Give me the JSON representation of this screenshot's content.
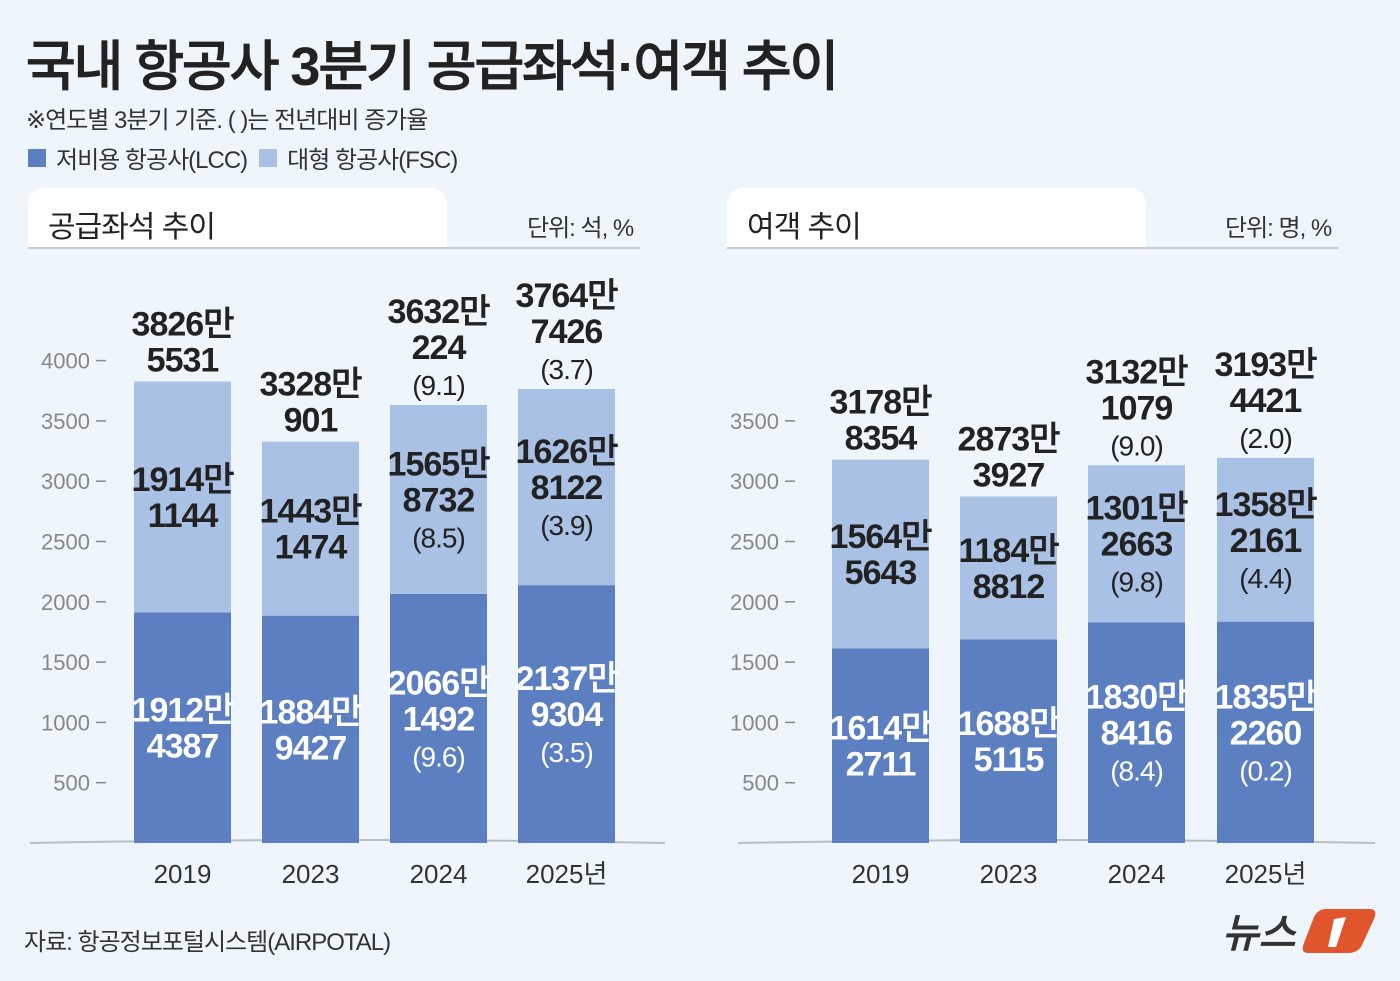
{
  "title": "국내 항공사 3분기 공급좌석·여객 추이",
  "subtitle": "※연도별 3분기 기준. ( )는 전년대비 증가율",
  "legend": [
    {
      "label": "저비용 항공사(LCC)",
      "color": "#5b7fc0"
    },
    {
      "label": "대형 항공사(FSC)",
      "color": "#a9c1e4"
    }
  ],
  "source": "자료: 항공정보포털시스템(AIRPOTAL)",
  "logo": "뉴스1",
  "chart_data": [
    {
      "type": "bar",
      "stacked": true,
      "title": "공급좌석 추이",
      "unit": "단위: 석, %",
      "categories": [
        "2019",
        "2023",
        "2024",
        "2025년"
      ],
      "ylim": [
        0,
        4000
      ],
      "yticks": [
        500,
        1000,
        1500,
        2000,
        2500,
        3000,
        3500,
        4000
      ],
      "series": [
        {
          "name": "저비용 항공사(LCC)",
          "values": [
            1912.4387,
            1884.9427,
            2066.1492,
            2137.9304
          ],
          "labels": [
            [
              "1912만",
              "4387"
            ],
            [
              "1884만",
              "9427"
            ],
            [
              "2066만",
              "1492",
              "(9.6)"
            ],
            [
              "2137만",
              "9304",
              "(3.5)"
            ]
          ]
        },
        {
          "name": "대형 항공사(FSC)",
          "values": [
            1914.1144,
            1443.1474,
            1565.8732,
            1626.8122
          ],
          "labels": [
            [
              "1914만",
              "1144"
            ],
            [
              "1443만",
              "1474"
            ],
            [
              "1565만",
              "8732",
              "(8.5)"
            ],
            [
              "1626만",
              "8122",
              "(3.9)"
            ]
          ]
        }
      ],
      "totals": [
        3826.5531,
        3328.0901,
        3632.0224,
        3764.7426
      ],
      "total_labels": [
        [
          "3826만",
          "5531"
        ],
        [
          "3328만",
          "901"
        ],
        [
          "3632만",
          "224",
          "(9.1)"
        ],
        [
          "3764만",
          "7426",
          "(3.7)"
        ]
      ]
    },
    {
      "type": "bar",
      "stacked": true,
      "title": "여객 추이",
      "unit": "단위: 명, %",
      "categories": [
        "2019",
        "2023",
        "2024",
        "2025년"
      ],
      "ylim": [
        0,
        3500
      ],
      "yticks": [
        500,
        1000,
        1500,
        2000,
        2500,
        3000,
        3500
      ],
      "series": [
        {
          "name": "저비용 항공사(LCC)",
          "values": [
            1614.2711,
            1688.5115,
            1830.8416,
            1835.226
          ],
          "labels": [
            [
              "1614만",
              "2711"
            ],
            [
              "1688만",
              "5115"
            ],
            [
              "1830만",
              "8416",
              "(8.4)"
            ],
            [
              "1835만",
              "2260",
              "(0.2)"
            ]
          ]
        },
        {
          "name": "대형 항공사(FSC)",
          "values": [
            1564.5643,
            1184.8812,
            1301.2663,
            1358.2161
          ],
          "labels": [
            [
              "1564만",
              "5643"
            ],
            [
              "1184만",
              "8812"
            ],
            [
              "1301만",
              "2663",
              "(9.8)"
            ],
            [
              "1358만",
              "2161",
              "(4.4)"
            ]
          ]
        }
      ],
      "totals": [
        3178.8354,
        2873.3927,
        3132.1079,
        3193.4421
      ],
      "total_labels": [
        [
          "3178만",
          "8354"
        ],
        [
          "2873만",
          "3927"
        ],
        [
          "3132만",
          "1079",
          "(9.0)"
        ],
        [
          "3193만",
          "4421",
          "(2.0)"
        ]
      ]
    }
  ]
}
